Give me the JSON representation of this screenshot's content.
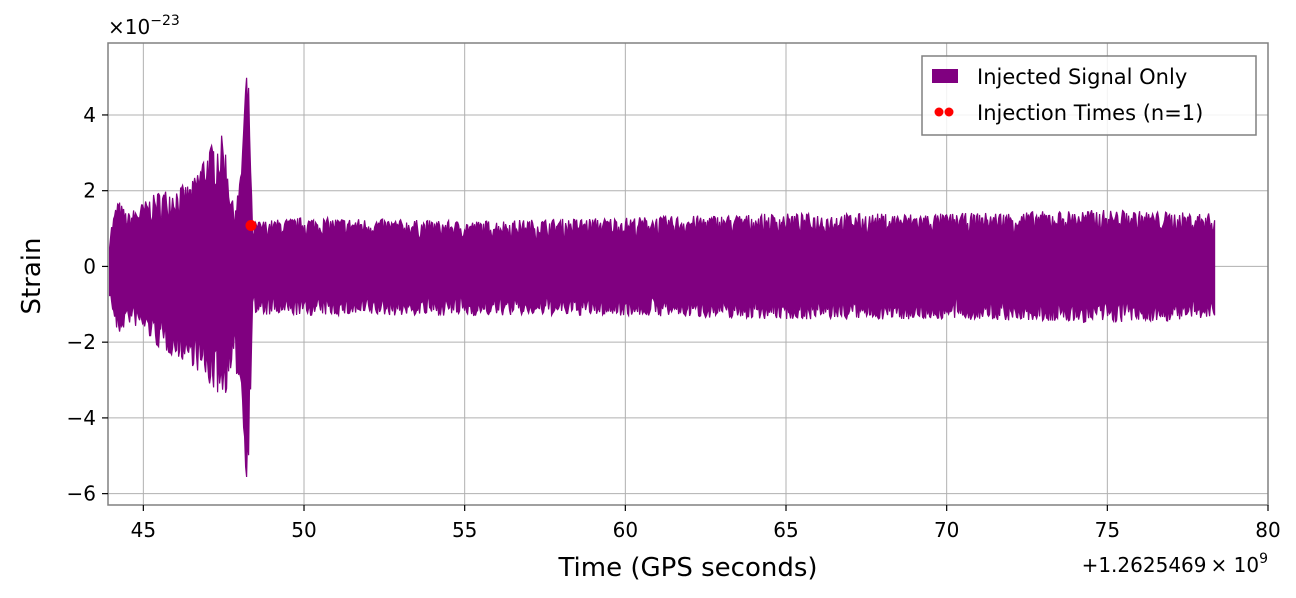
{
  "chart_data": {
    "type": "line",
    "title": "",
    "xlabel": "Time (GPS seconds)",
    "ylabel": "Strain",
    "x_offset_label": "+1.2625469",
    "x_offset_exponent_label": "× 10",
    "x_offset_exponent": "9",
    "y_multiplier_label": "×10",
    "y_multiplier_exponent": "−23",
    "xlim": [
      43.9,
      80.0
    ],
    "ylim": [
      -6.3,
      5.9
    ],
    "x_ticks": [
      45,
      50,
      55,
      60,
      65,
      70,
      75,
      80
    ],
    "x_tick_labels": [
      "45",
      "50",
      "55",
      "60",
      "65",
      "70",
      "75",
      "80"
    ],
    "y_ticks": [
      -6,
      -4,
      -2,
      0,
      2,
      4
    ],
    "y_tick_labels": [
      "−6",
      "−4",
      "−2",
      "0",
      "2",
      "4"
    ],
    "grid": true,
    "legend_position": "top-right",
    "colors": {
      "signal": "#800080",
      "injection": "#ff0000",
      "grid": "#b0b0b0",
      "frame": "#808080"
    },
    "series": [
      {
        "name": "Injected Signal Only",
        "kind": "filled-oscillation",
        "x_range": [
          43.95,
          78.35
        ],
        "envelope": {
          "x": [
            43.95,
            44.2,
            44.5,
            45.0,
            45.5,
            46.0,
            46.5,
            46.9,
            47.2,
            47.5,
            47.8,
            48.0,
            48.2,
            48.3,
            48.4,
            48.5,
            50,
            55,
            60,
            65,
            70,
            75,
            78.35
          ],
          "upper": [
            0.9,
            1.8,
            1.4,
            1.7,
            2.0,
            2.1,
            2.2,
            3.0,
            3.3,
            3.5,
            1.6,
            2.2,
            5.3,
            4.6,
            0.9,
            1.2,
            1.3,
            1.2,
            1.3,
            1.4,
            1.4,
            1.5,
            1.4
          ],
          "lower": [
            -0.8,
            -1.9,
            -1.5,
            -1.7,
            -2.2,
            -2.4,
            -2.6,
            -3.0,
            -3.3,
            -3.5,
            -2.8,
            -3.0,
            -5.7,
            -4.8,
            -1.0,
            -1.3,
            -1.3,
            -1.3,
            -1.3,
            -1.4,
            -1.4,
            -1.5,
            -1.4
          ]
        }
      },
      {
        "name": "Injection Times (n=1)",
        "kind": "scatter",
        "points": [
          {
            "x": 48.35,
            "y": 1.08
          }
        ]
      }
    ]
  }
}
